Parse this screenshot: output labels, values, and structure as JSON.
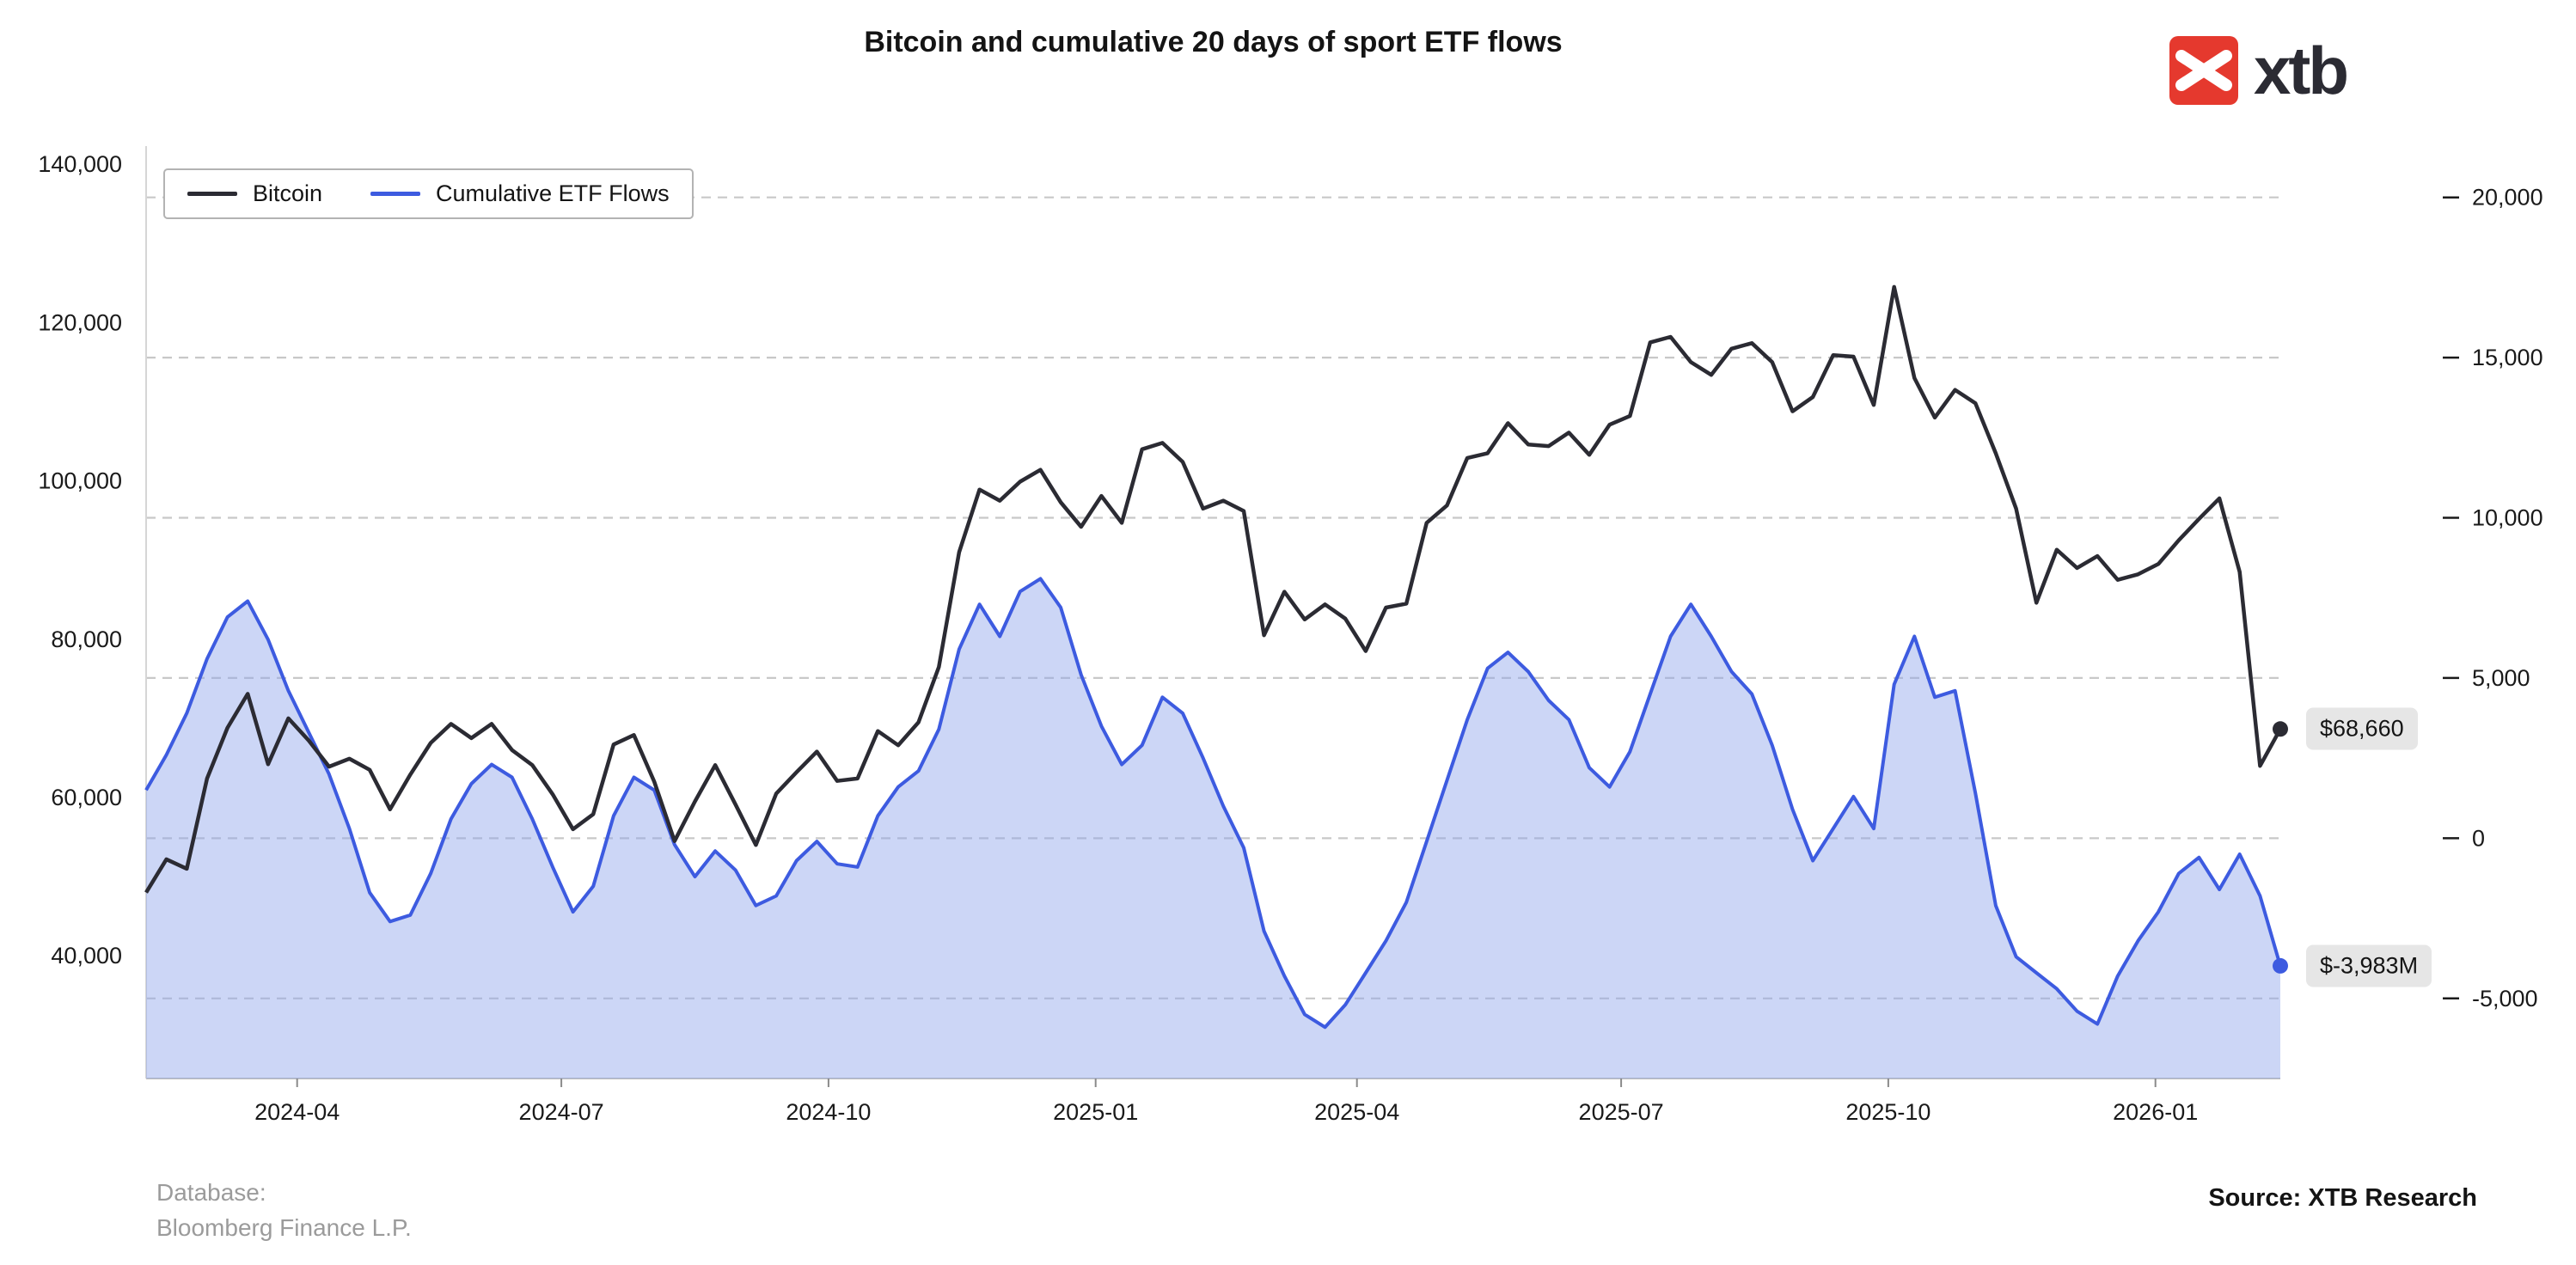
{
  "logo": {
    "text": "xtb",
    "red": "#e5392e"
  },
  "footer": {
    "database_label": "Database:",
    "database_value": "Bloomberg Finance L.P.",
    "source": "Source: XTB Research"
  },
  "chart_data": {
    "type": "line",
    "title": "Bitcoin and cumulative 20 days of sport ETF flows",
    "grid": {
      "axis": "right",
      "style": "dashed",
      "color": "#c8c8c8"
    },
    "legend_position": "top-left",
    "x": [
      "2024-02-09",
      "2024-02-16",
      "2024-02-23",
      "2024-03-01",
      "2024-03-08",
      "2024-03-15",
      "2024-03-22",
      "2024-03-29",
      "2024-04-05",
      "2024-04-12",
      "2024-04-19",
      "2024-04-26",
      "2024-05-03",
      "2024-05-10",
      "2024-05-17",
      "2024-05-24",
      "2024-05-31",
      "2024-06-07",
      "2024-06-14",
      "2024-06-21",
      "2024-06-28",
      "2024-07-05",
      "2024-07-12",
      "2024-07-19",
      "2024-07-26",
      "2024-08-02",
      "2024-08-09",
      "2024-08-16",
      "2024-08-23",
      "2024-08-30",
      "2024-09-06",
      "2024-09-13",
      "2024-09-20",
      "2024-09-27",
      "2024-10-04",
      "2024-10-11",
      "2024-10-18",
      "2024-10-25",
      "2024-11-01",
      "2024-11-08",
      "2024-11-15",
      "2024-11-22",
      "2024-11-29",
      "2024-12-06",
      "2024-12-13",
      "2024-12-20",
      "2024-12-27",
      "2025-01-03",
      "2025-01-10",
      "2025-01-17",
      "2025-01-24",
      "2025-01-31",
      "2025-02-07",
      "2025-02-14",
      "2025-02-21",
      "2025-02-28",
      "2025-03-07",
      "2025-03-14",
      "2025-03-21",
      "2025-03-28",
      "2025-04-04",
      "2025-04-11",
      "2025-04-18",
      "2025-04-25",
      "2025-05-02",
      "2025-05-09",
      "2025-05-16",
      "2025-05-23",
      "2025-05-30",
      "2025-06-06",
      "2025-06-13",
      "2025-06-20",
      "2025-06-27",
      "2025-07-04",
      "2025-07-11",
      "2025-07-18",
      "2025-07-25",
      "2025-08-01",
      "2025-08-08",
      "2025-08-15",
      "2025-08-22",
      "2025-08-29",
      "2025-09-05",
      "2025-09-12",
      "2025-09-19",
      "2025-09-26",
      "2025-10-03",
      "2025-10-10",
      "2025-10-17",
      "2025-10-24",
      "2025-10-31",
      "2025-11-07",
      "2025-11-14",
      "2025-11-21",
      "2025-11-28",
      "2025-12-05",
      "2025-12-12",
      "2025-12-19",
      "2025-12-26",
      "2026-01-02",
      "2026-01-09",
      "2026-01-16",
      "2026-01-23",
      "2026-01-30",
      "2026-02-06",
      "2026-02-13"
    ],
    "series": [
      {
        "name": "Bitcoin",
        "axis": "left",
        "color": "#2b2b33",
        "values": [
          48000,
          52200,
          51000,
          62400,
          68800,
          73100,
          64200,
          70000,
          67200,
          63900,
          64900,
          63500,
          58500,
          62900,
          66900,
          69300,
          67500,
          69300,
          66000,
          64100,
          60400,
          56000,
          57900,
          66700,
          67900,
          62000,
          54500,
          59500,
          64100,
          59100,
          54000,
          60500,
          63200,
          65800,
          62100,
          62400,
          68400,
          66600,
          69500,
          76500,
          91000,
          98900,
          97500,
          99900,
          101400,
          97300,
          94200,
          98100,
          94700,
          104000,
          104800,
          102400,
          96500,
          97500,
          96200,
          80500,
          86000,
          82500,
          84400,
          82600,
          78500,
          84000,
          84500,
          94700,
          96900,
          102900,
          103500,
          107300,
          104600,
          104400,
          106100,
          103300,
          107100,
          108200,
          117500,
          118200,
          115000,
          113400,
          116700,
          117400,
          115000,
          108800,
          110600,
          115900,
          115700,
          109600,
          124500,
          113000,
          108000,
          111500,
          109800,
          103500,
          96500,
          84600,
          91300,
          89000,
          90500,
          87500,
          88200,
          89500,
          92500,
          95200,
          97800,
          88500,
          64000,
          68660
        ]
      },
      {
        "name": "Cumulative ETF Flows",
        "axis": "right",
        "color": "#3d5be0",
        "fill": "#8fa3ea",
        "fill_opacity": 0.45,
        "values": [
          1500,
          2600,
          3900,
          5600,
          6900,
          7400,
          6200,
          4600,
          3300,
          2000,
          300,
          -1700,
          -2600,
          -2400,
          -1100,
          600,
          1700,
          2300,
          1900,
          600,
          -900,
          -2300,
          -1500,
          700,
          1900,
          1500,
          -200,
          -1200,
          -400,
          -1000,
          -2100,
          -1800,
          -700,
          -100,
          -800,
          -900,
          700,
          1600,
          2100,
          3400,
          5900,
          7300,
          6300,
          7700,
          8100,
          7200,
          5100,
          3500,
          2300,
          2900,
          4400,
          3900,
          2500,
          1000,
          -300,
          -2900,
          -4300,
          -5500,
          -5900,
          -5200,
          -4200,
          -3200,
          -2000,
          -100,
          1800,
          3700,
          5300,
          5800,
          5200,
          4300,
          3700,
          2200,
          1600,
          2700,
          4500,
          6300,
          7300,
          6300,
          5200,
          4500,
          2900,
          900,
          -700,
          300,
          1300,
          300,
          4800,
          6300,
          4400,
          4600,
          1400,
          -2100,
          -3700,
          -4200,
          -4700,
          -5400,
          -5800,
          -4300,
          -3200,
          -2300,
          -1100,
          -600,
          -1600,
          -500,
          -1800,
          -3983
        ]
      }
    ],
    "left_axis": {
      "ticks": [
        140000,
        120000,
        100000,
        80000,
        60000,
        40000
      ],
      "tick_labels": [
        "140,000",
        "120,000",
        "100,000",
        "80,000",
        "60,000",
        "40,000"
      ],
      "min": 24500,
      "max": 142300
    },
    "right_axis": {
      "ticks": [
        20000,
        15000,
        10000,
        5000,
        0,
        -5000
      ],
      "tick_labels": [
        "20,000",
        "15,000",
        "10,000",
        "5,000",
        "0",
        "-5,000"
      ],
      "min": -7500,
      "max": 21600
    },
    "x_ticks": [
      {
        "pos": "2024-04-01",
        "label": "2024-04"
      },
      {
        "pos": "2024-07-01",
        "label": "2024-07"
      },
      {
        "pos": "2024-10-01",
        "label": "2024-10"
      },
      {
        "pos": "2025-01-01",
        "label": "2025-01"
      },
      {
        "pos": "2025-04-01",
        "label": "2025-04"
      },
      {
        "pos": "2025-07-01",
        "label": "2025-07"
      },
      {
        "pos": "2025-10-01",
        "label": "2025-10"
      },
      {
        "pos": "2026-01-01",
        "label": "2026-01"
      }
    ],
    "annotations": [
      {
        "series": "Bitcoin",
        "text": "$68,660"
      },
      {
        "series": "Cumulative ETF Flows",
        "text": "$-3,983M"
      }
    ]
  }
}
